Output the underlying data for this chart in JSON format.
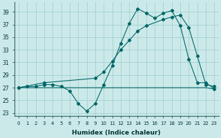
{
  "xlabel": "Humidex (Indice chaleur)",
  "bg_color": "#cce9e9",
  "line_color": "#006666",
  "grid_color": "#99cccc",
  "ylim": [
    22.5,
    40.5
  ],
  "xlim": [
    -0.5,
    23.5
  ],
  "yticks": [
    23,
    25,
    27,
    29,
    31,
    33,
    35,
    37,
    39
  ],
  "xticks": [
    0,
    1,
    2,
    3,
    4,
    5,
    6,
    7,
    8,
    9,
    10,
    11,
    12,
    13,
    14,
    15,
    16,
    17,
    18,
    19,
    20,
    21,
    22,
    23
  ],
  "series1_x": [
    0,
    1,
    2,
    3,
    4,
    5,
    6,
    7,
    8,
    9,
    10,
    11,
    12,
    13,
    14,
    15,
    16,
    17,
    18,
    19,
    20,
    21,
    22,
    23
  ],
  "series1_y": [
    27.0,
    27.2,
    27.2,
    27.5,
    27.5,
    27.2,
    26.5,
    24.5,
    23.3,
    24.5,
    27.5,
    30.5,
    34.0,
    37.2,
    39.5,
    38.8,
    38.0,
    38.8,
    39.2,
    36.8,
    31.5,
    27.8,
    27.8,
    26.8
  ],
  "series2_x": [
    0,
    3,
    9,
    10,
    11,
    12,
    13,
    14,
    15,
    17,
    18,
    19,
    20,
    21,
    22,
    23
  ],
  "series2_y": [
    27.0,
    27.8,
    28.5,
    29.5,
    31.2,
    33.0,
    34.5,
    36.0,
    36.8,
    37.8,
    38.2,
    38.5,
    36.5,
    32.0,
    27.5,
    27.2
  ],
  "series3_x": [
    0,
    1,
    2,
    3,
    4,
    5,
    6,
    7,
    8,
    9,
    10,
    11,
    12,
    13,
    14,
    15,
    16,
    17,
    18,
    19,
    20,
    21,
    22,
    23
  ],
  "series3_y": [
    27.0,
    27.0,
    27.0,
    27.0,
    27.0,
    27.0,
    27.0,
    27.0,
    27.0,
    27.0,
    27.0,
    27.0,
    27.0,
    27.0,
    27.0,
    27.0,
    27.0,
    27.0,
    27.0,
    27.0,
    27.0,
    27.0,
    27.0,
    26.8
  ],
  "figsize": [
    3.2,
    2.0
  ],
  "dpi": 100
}
